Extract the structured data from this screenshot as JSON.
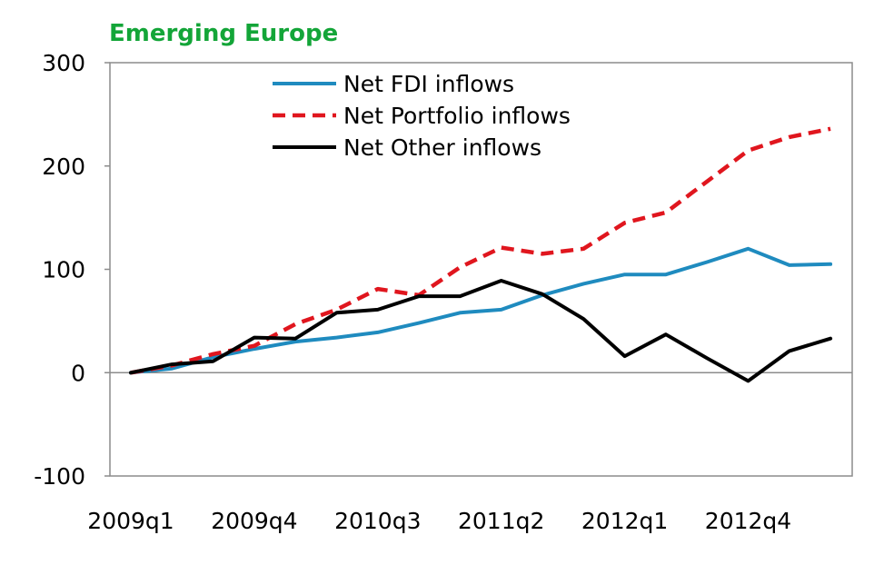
{
  "chart_data": {
    "type": "line",
    "title": "Emerging Europe",
    "xlabel": "",
    "ylabel": "",
    "ylim": [
      -100,
      300
    ],
    "yticks": [
      300,
      200,
      100,
      0,
      -100
    ],
    "x": [
      "2009q1",
      "2009q2",
      "2009q3",
      "2009q4",
      "2010q1",
      "2010q2",
      "2010q3",
      "2010q4",
      "2011q1",
      "2011q2",
      "2011q3",
      "2011q4",
      "2012q1",
      "2012q2",
      "2012q3",
      "2012q4",
      "2013q1",
      "2013q2"
    ],
    "xtick_labels": [
      "2009q1",
      "2009q4",
      "2010q3",
      "2011q2",
      "2012q1",
      "2012q4"
    ],
    "grid": false,
    "legend_position": "top",
    "series": [
      {
        "name": "Net FDI inflows",
        "color": "#1f8bbf",
        "style": "solid",
        "values": [
          0,
          4,
          15,
          23,
          30,
          34,
          39,
          48,
          58,
          61,
          75,
          86,
          95,
          95,
          107,
          120,
          104,
          105
        ]
      },
      {
        "name": "Net Portfolio inflows",
        "color": "#e0161e",
        "style": "dashed",
        "values": [
          0,
          7,
          18,
          26,
          47,
          61,
          81,
          75,
          102,
          121,
          115,
          120,
          145,
          155,
          185,
          215,
          228,
          236
        ]
      },
      {
        "name": "Net Other inflows",
        "color": "#000000",
        "style": "solid",
        "values": [
          0,
          8,
          11,
          34,
          33,
          58,
          61,
          74,
          74,
          89,
          76,
          52,
          16,
          37,
          14,
          -8,
          21,
          33
        ]
      }
    ]
  }
}
